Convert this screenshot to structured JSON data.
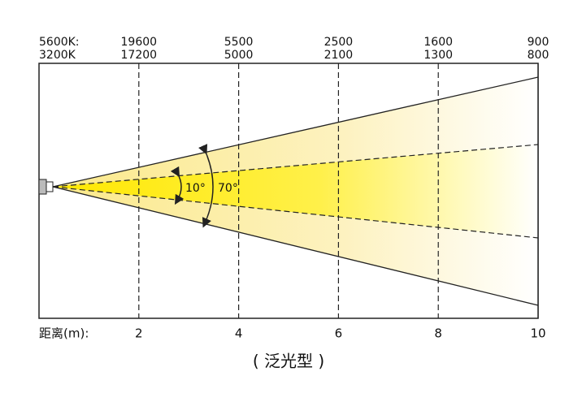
{
  "row_labels": [
    "5600K:",
    "3200K"
  ],
  "lux_5600k": [
    19600,
    5500,
    2500,
    1600,
    900
  ],
  "lux_3200k": [
    17200,
    5000,
    2100,
    1300,
    800
  ],
  "distance_label": "距离(m):",
  "distances": [
    2,
    4,
    6,
    8,
    10
  ],
  "angles": [
    "10°",
    "70°"
  ],
  "caption": "( 泛光型 )"
}
